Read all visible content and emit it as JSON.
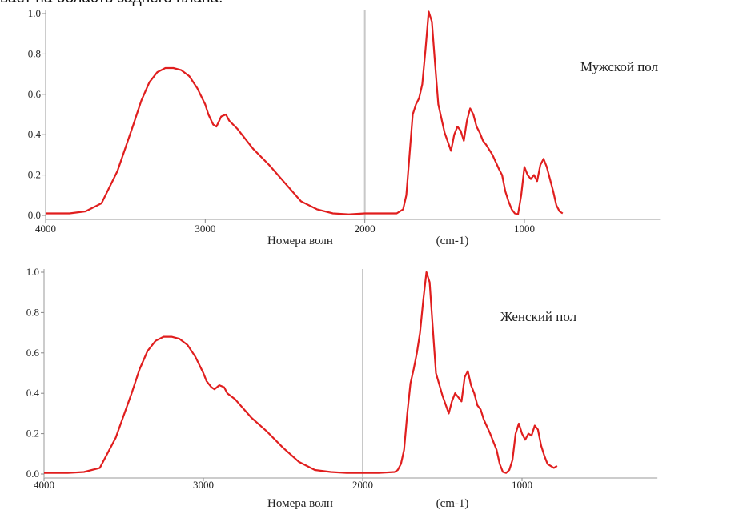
{
  "header_text": "вает на область заднего плана.",
  "chart_data": [
    {
      "type": "line",
      "annotation": "Мужской пол",
      "xlabel": "Номера волн",
      "xlabel_unit": "(cm-1)",
      "x_reversed": true,
      "xlim": [
        4000,
        150
      ],
      "ylim": [
        0,
        1.0
      ],
      "x_ticks": [
        4000,
        3000,
        2000,
        1000
      ],
      "x_tick_labels": [
        "4000",
        "3000",
        "2000",
        "1000"
      ],
      "y_ticks": [
        0.0,
        0.2,
        0.4,
        0.6,
        0.8,
        1.0
      ],
      "y_tick_labels": [
        "0.0",
        "0.2",
        "0.4",
        "0.6",
        "0.8",
        "1.0"
      ],
      "vline_x": 2000,
      "color": "#e01e1e",
      "series": [
        {
          "x": [
            4000,
            3850,
            3750,
            3650,
            3550,
            3450,
            3400,
            3350,
            3300,
            3250,
            3200,
            3150,
            3100,
            3050,
            3000,
            2980,
            2950,
            2930,
            2900,
            2870,
            2850,
            2800,
            2700,
            2600,
            2500,
            2400,
            2300,
            2200,
            2100,
            2000,
            1900,
            1800,
            1760,
            1740,
            1720,
            1700,
            1680,
            1660,
            1640,
            1620,
            1600,
            1580,
            1560,
            1540,
            1500,
            1460,
            1440,
            1420,
            1400,
            1380,
            1360,
            1340,
            1320,
            1300,
            1280,
            1260,
            1240,
            1200,
            1160,
            1140,
            1120,
            1100,
            1080,
            1060,
            1040,
            1020,
            1000,
            980,
            960,
            940,
            920,
            900,
            880,
            860,
            840,
            820,
            800,
            780,
            760
          ],
          "y": [
            0.01,
            0.01,
            0.02,
            0.06,
            0.22,
            0.45,
            0.57,
            0.66,
            0.71,
            0.73,
            0.73,
            0.72,
            0.69,
            0.63,
            0.55,
            0.5,
            0.45,
            0.44,
            0.49,
            0.5,
            0.47,
            0.43,
            0.33,
            0.25,
            0.16,
            0.07,
            0.03,
            0.01,
            0.005,
            0.01,
            0.01,
            0.01,
            0.03,
            0.1,
            0.3,
            0.5,
            0.55,
            0.58,
            0.65,
            0.82,
            1.01,
            0.96,
            0.75,
            0.55,
            0.41,
            0.32,
            0.4,
            0.44,
            0.42,
            0.37,
            0.47,
            0.53,
            0.5,
            0.44,
            0.41,
            0.37,
            0.35,
            0.3,
            0.23,
            0.2,
            0.12,
            0.07,
            0.03,
            0.01,
            0.005,
            0.1,
            0.24,
            0.2,
            0.18,
            0.2,
            0.17,
            0.25,
            0.28,
            0.24,
            0.18,
            0.12,
            0.05,
            0.02,
            0.01
          ]
        }
      ]
    },
    {
      "type": "line",
      "annotation": "Женский пол",
      "xlabel": "Номера волн",
      "xlabel_unit": "(cm-1)",
      "x_reversed": true,
      "xlim": [
        4000,
        150
      ],
      "ylim": [
        0,
        1.0
      ],
      "x_ticks": [
        4000,
        3000,
        2000,
        1000
      ],
      "x_tick_labels": [
        "4000",
        "3000",
        "2000",
        "1000"
      ],
      "y_ticks": [
        0.0,
        0.2,
        0.4,
        0.6,
        0.8,
        1.0
      ],
      "y_tick_labels": [
        "0.0",
        "0.2",
        "0.4",
        "0.6",
        "0.8",
        "1.0"
      ],
      "vline_x": 2000,
      "color": "#e01e1e",
      "series": [
        {
          "x": [
            4000,
            3850,
            3750,
            3650,
            3550,
            3450,
            3400,
            3350,
            3300,
            3250,
            3200,
            3150,
            3100,
            3050,
            3000,
            2980,
            2950,
            2930,
            2900,
            2870,
            2850,
            2800,
            2700,
            2600,
            2500,
            2400,
            2300,
            2200,
            2100,
            2000,
            1900,
            1800,
            1780,
            1760,
            1740,
            1720,
            1700,
            1680,
            1660,
            1640,
            1620,
            1600,
            1580,
            1560,
            1540,
            1500,
            1460,
            1440,
            1420,
            1400,
            1380,
            1360,
            1340,
            1320,
            1300,
            1280,
            1260,
            1240,
            1200,
            1160,
            1140,
            1120,
            1100,
            1080,
            1060,
            1040,
            1020,
            1000,
            980,
            960,
            940,
            920,
            900,
            880,
            860,
            840,
            820,
            800,
            780
          ],
          "y": [
            0.005,
            0.005,
            0.01,
            0.03,
            0.18,
            0.4,
            0.52,
            0.61,
            0.66,
            0.68,
            0.68,
            0.67,
            0.64,
            0.58,
            0.5,
            0.46,
            0.43,
            0.42,
            0.44,
            0.43,
            0.4,
            0.37,
            0.28,
            0.21,
            0.13,
            0.06,
            0.02,
            0.01,
            0.005,
            0.005,
            0.005,
            0.01,
            0.02,
            0.05,
            0.12,
            0.3,
            0.45,
            0.52,
            0.6,
            0.7,
            0.86,
            1.0,
            0.95,
            0.72,
            0.5,
            0.39,
            0.3,
            0.36,
            0.4,
            0.38,
            0.36,
            0.48,
            0.51,
            0.44,
            0.4,
            0.34,
            0.32,
            0.27,
            0.2,
            0.12,
            0.05,
            0.01,
            0.005,
            0.02,
            0.07,
            0.2,
            0.25,
            0.2,
            0.17,
            0.2,
            0.19,
            0.24,
            0.22,
            0.14,
            0.09,
            0.05,
            0.04,
            0.03,
            0.04
          ]
        }
      ]
    }
  ]
}
